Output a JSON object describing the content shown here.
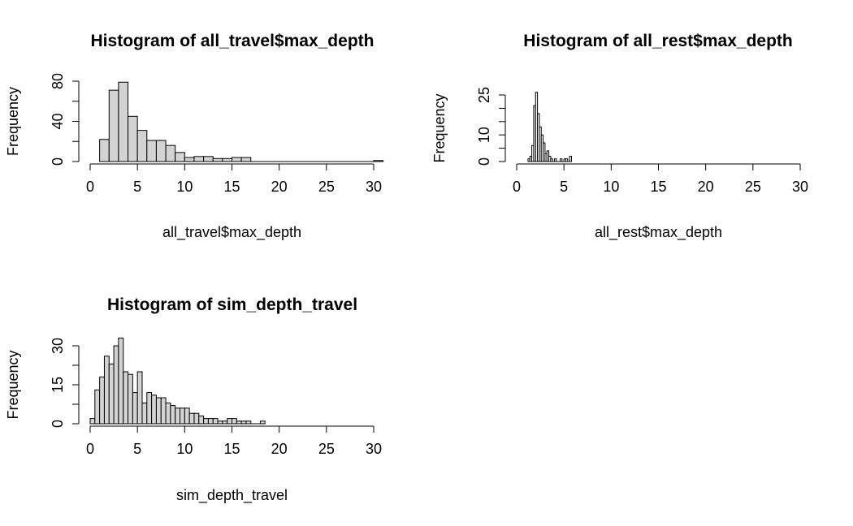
{
  "chart_data": [
    {
      "type": "bar",
      "title": "Histogram of all_travel$max_depth",
      "xlabel": "all_travel$max_depth",
      "ylabel": "Frequency",
      "xlim": [
        0,
        30
      ],
      "ylim": [
        0,
        80
      ],
      "x_ticks": [
        "0",
        "5",
        "10",
        "15",
        "20",
        "25",
        "30"
      ],
      "y_ticks": [
        "0",
        "40",
        "80"
      ],
      "bin_width": 1,
      "bin_edges": [
        1,
        2,
        3,
        4,
        5,
        6,
        7,
        8,
        9,
        10,
        11,
        12,
        13,
        14,
        15,
        16,
        17,
        30,
        31
      ],
      "values": [
        22,
        71,
        79,
        45,
        31,
        21,
        21,
        16,
        9,
        4,
        5,
        5,
        3,
        3,
        4,
        4,
        0,
        1
      ],
      "bar_fill": "#d3d3d3",
      "grid": false,
      "legend": "none"
    },
    {
      "type": "bar",
      "title": "Histogram of all_rest$max_depth",
      "xlabel": "all_rest$max_depth",
      "ylabel": "Frequency",
      "xlim": [
        0,
        30
      ],
      "ylim": [
        0,
        25
      ],
      "x_ticks": [
        "0",
        "5",
        "10",
        "15",
        "20",
        "25",
        "30"
      ],
      "y_ticks": [
        "0",
        "10",
        "25"
      ],
      "bin_width": 0.2,
      "bin_start": 1.2,
      "values": [
        1,
        2,
        6,
        21,
        26,
        18,
        13,
        10,
        7,
        3,
        4,
        2,
        1,
        0,
        1,
        0,
        0,
        1,
        0,
        1,
        1,
        0,
        2
      ],
      "bar_fill": "#ffffff",
      "grid": false,
      "legend": "none"
    },
    {
      "type": "bar",
      "title": "Histogram of sim_depth_travel",
      "xlabel": "sim_depth_travel",
      "ylabel": "Frequency",
      "xlim": [
        0,
        30
      ],
      "ylim": [
        0,
        30
      ],
      "x_ticks": [
        "0",
        "5",
        "10",
        "15",
        "20",
        "25",
        "30"
      ],
      "y_ticks": [
        "0",
        "15",
        "30"
      ],
      "bin_width": 0.5,
      "bin_start": 0,
      "values": [
        2,
        13,
        18,
        26,
        23,
        30,
        33,
        20,
        19,
        12,
        20,
        8,
        12,
        11,
        10,
        10,
        8,
        7,
        6,
        6,
        6,
        4,
        4,
        3,
        2,
        2,
        2,
        1,
        1,
        2,
        2,
        1,
        1,
        1,
        0,
        0,
        1
      ],
      "bar_fill": "#d3d3d3",
      "grid": false,
      "legend": "none"
    }
  ]
}
